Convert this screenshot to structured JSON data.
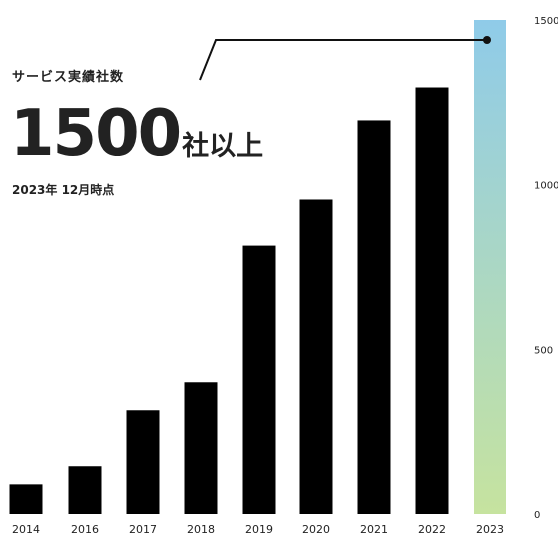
{
  "header": {
    "title": "サービス実績社数",
    "headline_number": "1500",
    "headline_unit": "社以上",
    "as_of": "2023年 12月時点"
  },
  "colors": {
    "bar": "#000000",
    "highlight_top": "#8fcbe9",
    "highlight_bottom": "#c6e39f",
    "text": "#222222",
    "grid": "#e6e6e6"
  },
  "chart_data": {
    "type": "bar",
    "categories": [
      "2014",
      "2016",
      "2017",
      "2018",
      "2019",
      "2020",
      "2021",
      "2022",
      "2023"
    ],
    "values": [
      90,
      145,
      315,
      400,
      815,
      955,
      1195,
      1295,
      1500
    ],
    "highlight_index": 8,
    "y_ticks": [
      0,
      500,
      1000,
      1500
    ],
    "ylim": [
      0,
      1500
    ],
    "grid": false,
    "legend": "none",
    "title": "",
    "xlabel": "",
    "ylabel": ""
  }
}
